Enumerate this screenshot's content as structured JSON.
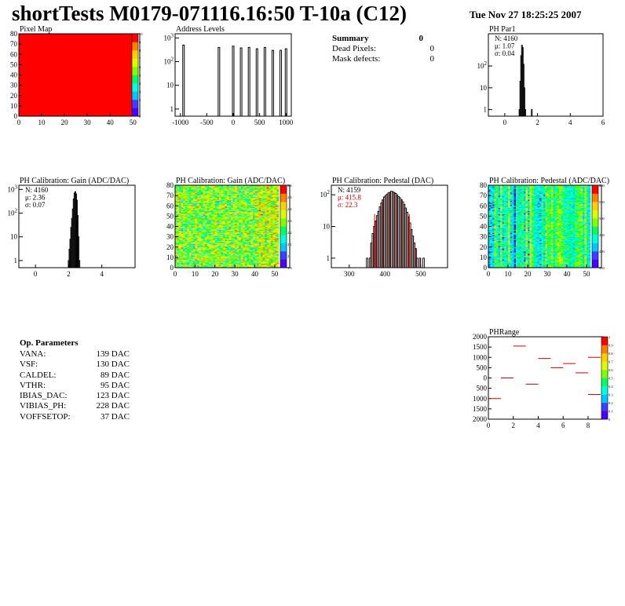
{
  "header": {
    "title": "shortTests M0179-071116.16:50 T-10a (C12)",
    "date": "Tue Nov 27 18:25:25 2007"
  },
  "colors": {
    "red_fill": "#ff0000",
    "hist_line": "#000000",
    "stat_red": "#cc0000",
    "palette": [
      "#4b00ff",
      "#3f3fff",
      "#00c8ff",
      "#00ffe0",
      "#00ff60",
      "#7fff00",
      "#d8ff00",
      "#ffd000",
      "#ff8000",
      "#ff0000"
    ]
  },
  "summary": {
    "title": "Summary",
    "title_value": "0",
    "rows": [
      {
        "label": "Dead Pixels:",
        "value": "0"
      },
      {
        "label": "Mask defects:",
        "value": "0"
      }
    ]
  },
  "op_params": {
    "title": "Op. Parameters",
    "rows": [
      {
        "label": "VANA:",
        "value": "139 DAC"
      },
      {
        "label": "VSF:",
        "value": "130 DAC"
      },
      {
        "label": "CALDEL:",
        "value": "89 DAC"
      },
      {
        "label": "VTHR:",
        "value": "95 DAC"
      },
      {
        "label": "IBIAS_DAC:",
        "value": "123 DAC"
      },
      {
        "label": "VIBIAS_PH:",
        "value": "228 DAC"
      },
      {
        "label": "VOFFSETOP:",
        "value": "37 DAC"
      }
    ]
  },
  "chart_data": [
    {
      "id": "pixelmap",
      "type": "heatmap",
      "title": "Pixel Map",
      "xlim": [
        0,
        52
      ],
      "ylim": [
        0,
        80
      ],
      "xticks": [
        "0",
        "10",
        "20",
        "30",
        "40",
        "50"
      ],
      "yticks": [
        "0",
        "10",
        "20",
        "30",
        "40",
        "50",
        "60",
        "70",
        "80"
      ],
      "fill": "uniform",
      "z_value": 10,
      "zlim": [
        0,
        10
      ],
      "zticks": [
        "0",
        "1",
        "2",
        "3",
        "4",
        "5",
        "6",
        "7",
        "8",
        "9",
        "10"
      ]
    },
    {
      "id": "addresslevels",
      "type": "bar",
      "title": "Address Levels",
      "log_y": true,
      "xlim": [
        -1100,
        1100
      ],
      "xticks": [
        "-1000",
        "-500",
        "0",
        "500",
        "1000"
      ],
      "yticks": [
        "1",
        "10",
        "10^2",
        "10^3"
      ],
      "peaks": [
        {
          "x": -940,
          "y": 500
        },
        {
          "x": -270,
          "y": 400
        },
        {
          "x": 0,
          "y": 450
        },
        {
          "x": 150,
          "y": 380
        },
        {
          "x": 300,
          "y": 400
        },
        {
          "x": 450,
          "y": 350
        },
        {
          "x": 600,
          "y": 400
        },
        {
          "x": 750,
          "y": 300
        },
        {
          "x": 900,
          "y": 300
        },
        {
          "x": 1000,
          "y": 350
        }
      ]
    },
    {
      "id": "phpar1",
      "type": "bar",
      "title": "PH Par1",
      "log_y": true,
      "xlim": [
        -1,
        6
      ],
      "xticks": [
        "0",
        "2",
        "4",
        "6"
      ],
      "yticks": [
        "1",
        "10",
        "10^2"
      ],
      "stats": {
        "n": "N: 4160",
        "mu": "μ: 1.07",
        "sigma": "σ: 0.04"
      },
      "bins": [
        {
          "x": 0.9,
          "y": 1
        },
        {
          "x": 0.95,
          "y": 20
        },
        {
          "x": 1.0,
          "y": 300
        },
        {
          "x": 1.05,
          "y": 900
        },
        {
          "x": 1.1,
          "y": 700
        },
        {
          "x": 1.15,
          "y": 120
        },
        {
          "x": 1.2,
          "y": 10
        },
        {
          "x": 1.25,
          "y": 1
        },
        {
          "x": 1.65,
          "y": 1
        }
      ]
    },
    {
      "id": "phgain",
      "type": "bar",
      "title": "PH Calibration: Gain (ADC/DAC)",
      "log_y": true,
      "xlim": [
        -1,
        6
      ],
      "xticks": [
        "0",
        "2",
        "4"
      ],
      "yticks": [
        "1",
        "10",
        "10^2",
        "10^3"
      ],
      "stats": {
        "n": "N: 4160",
        "mu": "μ: 2.36",
        "sigma": "σ: 0.07"
      },
      "bins": [
        {
          "x": 2.0,
          "y": 1
        },
        {
          "x": 2.05,
          "y": 3
        },
        {
          "x": 2.1,
          "y": 8
        },
        {
          "x": 2.15,
          "y": 25
        },
        {
          "x": 2.2,
          "y": 60
        },
        {
          "x": 2.25,
          "y": 150
        },
        {
          "x": 2.3,
          "y": 400
        },
        {
          "x": 2.35,
          "y": 700
        },
        {
          "x": 2.4,
          "y": 800
        },
        {
          "x": 2.45,
          "y": 650
        },
        {
          "x": 2.5,
          "y": 350
        },
        {
          "x": 2.55,
          "y": 80
        },
        {
          "x": 2.6,
          "y": 10
        },
        {
          "x": 2.65,
          "y": 1
        }
      ]
    },
    {
      "id": "phgainmap",
      "type": "heatmap",
      "title": "PH Calibration: Gain (ADC/DAC)",
      "xlim": [
        0,
        52
      ],
      "ylim": [
        0,
        80
      ],
      "xticks": [
        "0",
        "10",
        "20",
        "30",
        "40",
        "50"
      ],
      "yticks": [
        "0",
        "10",
        "20",
        "30",
        "40",
        "50",
        "60",
        "70",
        "80"
      ],
      "zlim": [
        1.9,
        2.6
      ],
      "zticks": [
        "1.9",
        "2",
        "2.1",
        "2.2",
        "2.3",
        "2.4",
        "2.5",
        "2.6"
      ]
    },
    {
      "id": "phpedestal",
      "type": "bar",
      "title": "PH Calibration: Pedestal (DAC)",
      "log_y": true,
      "xlim": [
        250,
        575
      ],
      "xticks": [
        "300",
        "400",
        "500"
      ],
      "yticks": [
        "1",
        "10",
        "10^2"
      ],
      "stats": {
        "n": "N: 4159",
        "mu": "μ: 415.8",
        "sigma": "σ: 22.3"
      },
      "markers": [
        371,
        468
      ],
      "bins": [
        {
          "x": 350,
          "y": 1
        },
        {
          "x": 358,
          "y": 1
        },
        {
          "x": 362,
          "y": 3
        },
        {
          "x": 366,
          "y": 6
        },
        {
          "x": 370,
          "y": 10
        },
        {
          "x": 374,
          "y": 15
        },
        {
          "x": 378,
          "y": 22
        },
        {
          "x": 382,
          "y": 30
        },
        {
          "x": 386,
          "y": 42
        },
        {
          "x": 390,
          "y": 55
        },
        {
          "x": 394,
          "y": 70
        },
        {
          "x": 398,
          "y": 85
        },
        {
          "x": 402,
          "y": 95
        },
        {
          "x": 406,
          "y": 105
        },
        {
          "x": 410,
          "y": 115
        },
        {
          "x": 414,
          "y": 120
        },
        {
          "x": 418,
          "y": 130
        },
        {
          "x": 422,
          "y": 125
        },
        {
          "x": 426,
          "y": 118
        },
        {
          "x": 430,
          "y": 110
        },
        {
          "x": 434,
          "y": 100
        },
        {
          "x": 438,
          "y": 88
        },
        {
          "x": 442,
          "y": 80
        },
        {
          "x": 446,
          "y": 70
        },
        {
          "x": 450,
          "y": 60
        },
        {
          "x": 454,
          "y": 50
        },
        {
          "x": 458,
          "y": 38
        },
        {
          "x": 462,
          "y": 28
        },
        {
          "x": 466,
          "y": 20
        },
        {
          "x": 470,
          "y": 13
        },
        {
          "x": 474,
          "y": 8
        },
        {
          "x": 478,
          "y": 5
        },
        {
          "x": 482,
          "y": 3
        },
        {
          "x": 486,
          "y": 2
        },
        {
          "x": 490,
          "y": 1
        },
        {
          "x": 498,
          "y": 1
        },
        {
          "x": 508,
          "y": 1
        }
      ]
    },
    {
      "id": "phpedestalmap",
      "type": "heatmap",
      "title": "PH Calibration: Pedestal (ADC/DAC)",
      "xlim": [
        0,
        52
      ],
      "ylim": [
        0,
        80
      ],
      "xticks": [
        "0",
        "10",
        "20",
        "30",
        "40",
        "50"
      ],
      "yticks": [
        "0",
        "10",
        "20",
        "30",
        "40",
        "50",
        "60",
        "70",
        "80"
      ],
      "zlim": [
        350,
        600
      ],
      "zticks": [
        "350",
        "400",
        "450",
        "500",
        "550",
        "600"
      ]
    },
    {
      "id": "phrange",
      "type": "scatter",
      "title": "PHRange",
      "xlim": [
        0,
        9
      ],
      "ylim": [
        -2000,
        2000
      ],
      "xticks": [
        "0",
        "2",
        "4",
        "6",
        "8"
      ],
      "yticks": [
        "2000",
        "1500",
        "1000",
        "500",
        "0",
        "500",
        "1000",
        "1500",
        "2000"
      ],
      "zticks": [
        "0",
        "0.1",
        "0.2",
        "0.3",
        "0.4",
        "0.5",
        "0.6",
        "0.7",
        "0.8",
        "0.9",
        "1"
      ],
      "segments": [
        {
          "x": 0,
          "y": -1000
        },
        {
          "x": 1,
          "y": 0
        },
        {
          "x": 2,
          "y": 1550
        },
        {
          "x": 3,
          "y": -300
        },
        {
          "x": 4,
          "y": 950
        },
        {
          "x": 5,
          "y": 500
        },
        {
          "x": 6,
          "y": 700
        },
        {
          "x": 7,
          "y": 250
        },
        {
          "x": 8,
          "y": 1000
        },
        {
          "x": 8,
          "y": -800
        }
      ]
    }
  ]
}
